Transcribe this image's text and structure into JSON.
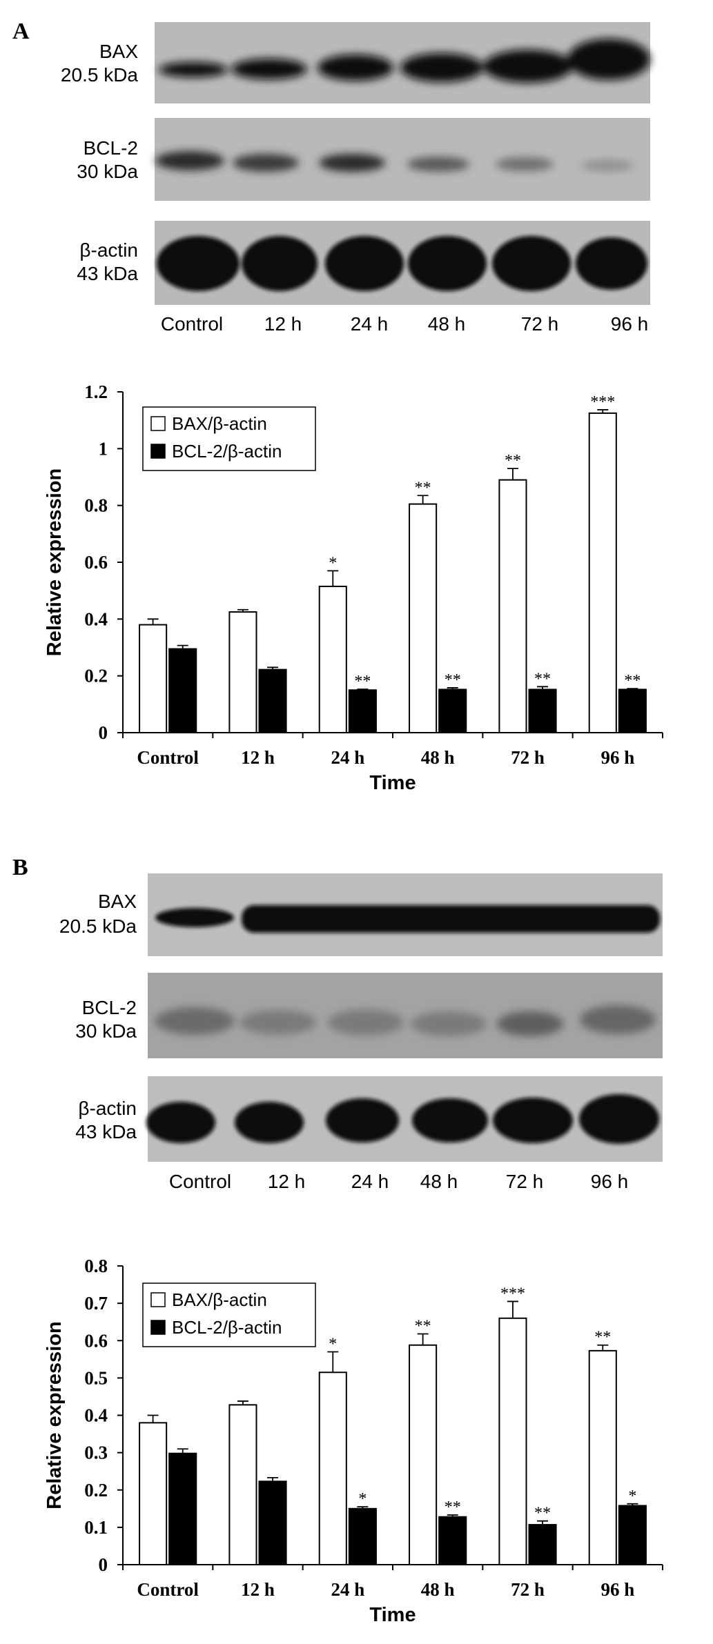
{
  "panels": [
    {
      "letter": "A",
      "blot_rows": [
        {
          "protein": "BAX",
          "weight": "20.5 kDa"
        },
        {
          "protein": "BCL-2",
          "weight": "30 kDa"
        },
        {
          "protein": "β-actin",
          "weight": "43 kDa"
        }
      ],
      "lane_labels": [
        "Control",
        "12 h",
        "24 h",
        "48 h",
        "72 h",
        "96 h"
      ]
    },
    {
      "letter": "B",
      "blot_rows": [
        {
          "protein": "BAX",
          "weight": "20.5 kDa"
        },
        {
          "protein": "BCL-2",
          "weight": "30 kDa"
        },
        {
          "protein": "β-actin",
          "weight": "43 kDa"
        }
      ],
      "lane_labels": [
        "Control",
        "12 h",
        "24 h",
        "48 h",
        "72 h",
        "96 h"
      ]
    }
  ],
  "chart_data": [
    {
      "type": "bar",
      "categories": [
        "Control",
        "12 h",
        "24 h",
        "48 h",
        "72 h",
        "96 h"
      ],
      "xlabel": "Time",
      "ylabel": "Relative expression",
      "ylim": [
        0,
        1.2
      ],
      "yticks": [
        "0",
        "0.2",
        "0.4",
        "0.6",
        "0.8",
        "1",
        "1.2"
      ],
      "legend_position": "top-left",
      "series": [
        {
          "name": "BAX/β-actin",
          "color": "#ffffff",
          "values": [
            0.38,
            0.425,
            0.515,
            0.805,
            0.89,
            1.125
          ],
          "errors": [
            0.02,
            0.008,
            0.055,
            0.03,
            0.04,
            0.012
          ],
          "significance": [
            "",
            "",
            "*",
            "**",
            "**",
            "***"
          ]
        },
        {
          "name": "BCL-2/β-actin",
          "color": "#000000",
          "values": [
            0.295,
            0.222,
            0.15,
            0.152,
            0.152,
            0.152
          ],
          "errors": [
            0.012,
            0.008,
            0.003,
            0.006,
            0.01,
            0.003
          ],
          "significance": [
            "",
            "",
            "**",
            "**",
            "**",
            "**"
          ]
        }
      ]
    },
    {
      "type": "bar",
      "categories": [
        "Control",
        "12 h",
        "24 h",
        "48 h",
        "72 h",
        "96 h"
      ],
      "xlabel": "Time",
      "ylabel": "Relative expression",
      "ylim": [
        0,
        0.8
      ],
      "yticks": [
        "0",
        "0.1",
        "0.2",
        "0.3",
        "0.4",
        "0.5",
        "0.6",
        "0.7",
        "0.8"
      ],
      "legend_position": "top-left",
      "series": [
        {
          "name": "BAX/β-actin",
          "color": "#ffffff",
          "values": [
            0.38,
            0.428,
            0.515,
            0.588,
            0.66,
            0.573
          ],
          "errors": [
            0.02,
            0.01,
            0.055,
            0.03,
            0.045,
            0.015
          ],
          "significance": [
            "",
            "",
            "*",
            "**",
            "***",
            "**"
          ]
        },
        {
          "name": "BCL-2/β-actin",
          "color": "#000000",
          "values": [
            0.298,
            0.223,
            0.15,
            0.128,
            0.107,
            0.158
          ],
          "errors": [
            0.012,
            0.01,
            0.005,
            0.005,
            0.01,
            0.005
          ],
          "significance": [
            "",
            "",
            "*",
            "**",
            "**",
            "*"
          ]
        }
      ]
    }
  ]
}
